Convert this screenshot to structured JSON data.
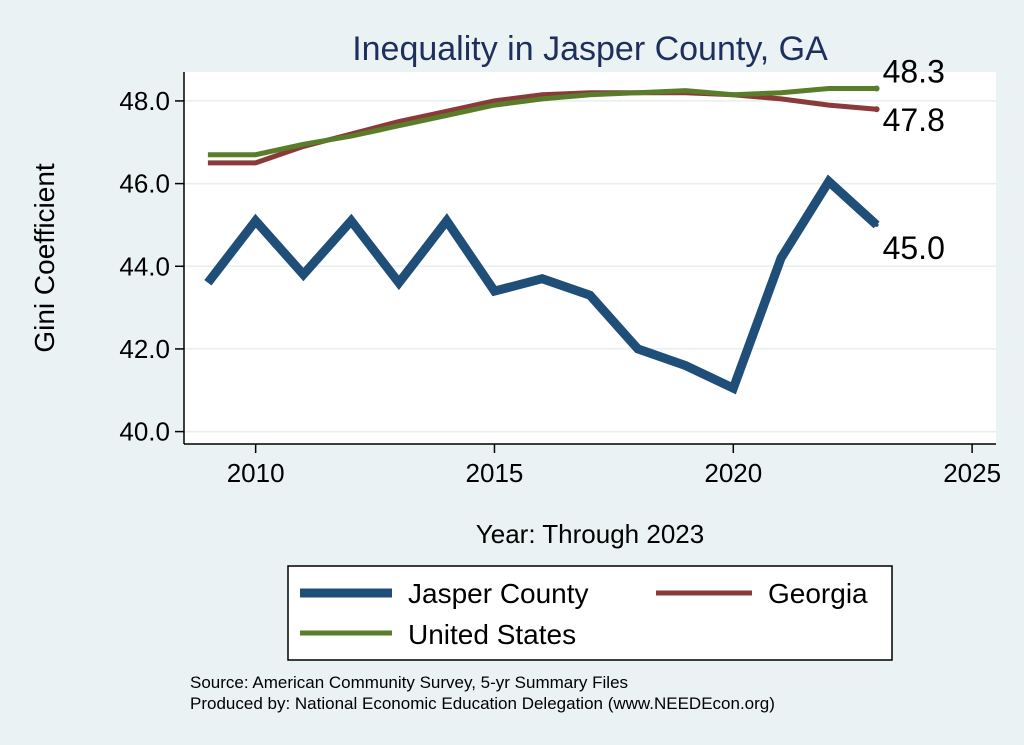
{
  "chart_data": {
    "type": "line",
    "title": "Inequality in Jasper County, GA",
    "xlabel": "Year: Through 2023",
    "ylabel": "Gini Coefficient",
    "xlim": [
      2008.5,
      2025.5
    ],
    "ylim": [
      39.7,
      48.7
    ],
    "x_ticks": [
      2010,
      2015,
      2020,
      2025
    ],
    "y_ticks": [
      40.0,
      42.0,
      44.0,
      46.0,
      48.0
    ],
    "y_tick_labels": [
      "40.0",
      "42.0",
      "44.0",
      "46.0",
      "48.0"
    ],
    "grid": "horizontal",
    "legend_position": "bottom",
    "x": [
      2009,
      2010,
      2011,
      2012,
      2013,
      2014,
      2015,
      2016,
      2017,
      2018,
      2019,
      2020,
      2021,
      2022,
      2023
    ],
    "series": [
      {
        "name": "Jasper County",
        "color": "#1f4e79",
        "width": 9,
        "end_label": "45.0",
        "values": [
          43.6,
          45.1,
          43.8,
          45.1,
          43.6,
          45.1,
          43.4,
          43.7,
          43.3,
          42.0,
          41.6,
          41.05,
          44.2,
          46.05,
          45.0
        ]
      },
      {
        "name": "Georgia",
        "color": "#8b3a3a",
        "width": 5,
        "end_label": "47.8",
        "values": [
          46.5,
          46.5,
          46.9,
          47.2,
          47.5,
          47.75,
          48.0,
          48.15,
          48.2,
          48.2,
          48.2,
          48.15,
          48.05,
          47.9,
          47.8
        ]
      },
      {
        "name": "United States",
        "color": "#5a7d2a",
        "width": 5,
        "end_label": "48.3",
        "values": [
          46.7,
          46.7,
          46.95,
          47.15,
          47.4,
          47.65,
          47.9,
          48.05,
          48.15,
          48.2,
          48.25,
          48.15,
          48.2,
          48.3,
          48.3
        ]
      }
    ]
  },
  "footer": {
    "source": "Source: American Community Survey, 5-yr Summary Files",
    "producer": "Produced by: National Economic Education Delegation (www.NEEDEcon.org)"
  }
}
